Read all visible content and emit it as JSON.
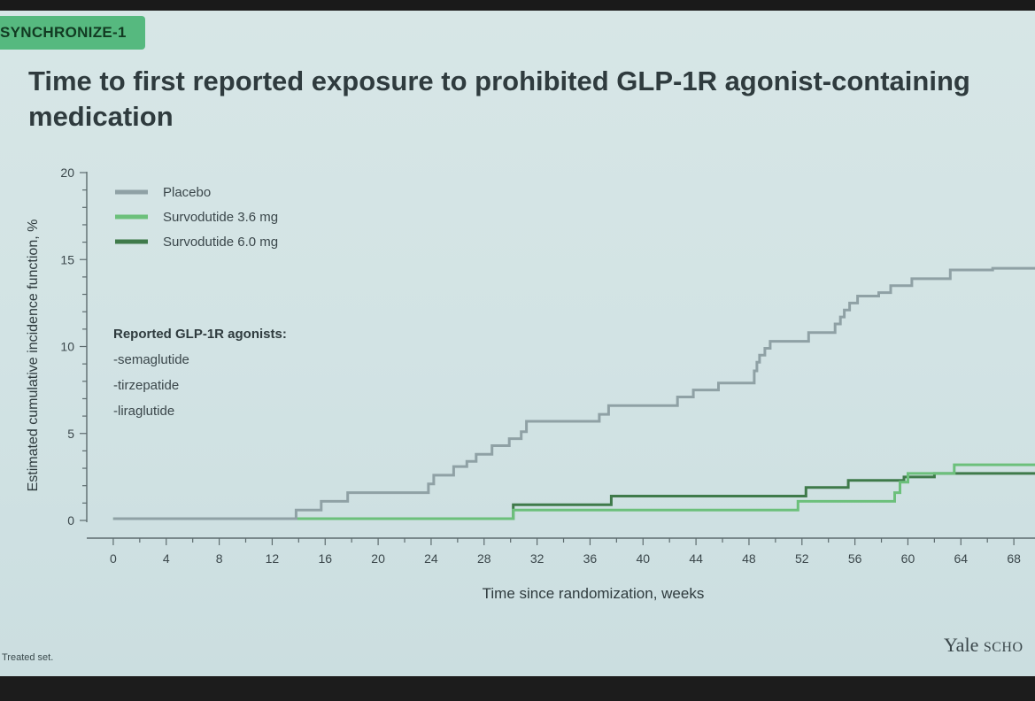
{
  "badge": "SYNCHRONIZE-1",
  "title": "Time to first reported exposure to prohibited GLP-1R agonist-containing medication",
  "footnote": "Treated set.",
  "brand": {
    "main": "Yale",
    "sub": "SCHO"
  },
  "annotation": {
    "heading": "Reported GLP-1R agonists:",
    "items": [
      "-semaglutide",
      "-tirzepatide",
      "-liraglutide"
    ]
  },
  "chart_data": {
    "type": "line",
    "title": "Time to first reported exposure to prohibited GLP-1R agonist-containing medication",
    "xlabel": "Time since randomization, weeks",
    "ylabel": "Estimated cumulative incidence function, %",
    "xlim": [
      -2,
      71
    ],
    "ylim": [
      0,
      20
    ],
    "xticks": [
      0,
      4,
      8,
      12,
      16,
      20,
      24,
      28,
      32,
      36,
      40,
      44,
      48,
      52,
      56,
      60,
      64,
      68
    ],
    "yticks": [
      0,
      5,
      10,
      15,
      20
    ],
    "grid": false,
    "legend_position": "top-left",
    "step": true,
    "series": [
      {
        "name": "Placebo",
        "color": "#8fa1a5",
        "x": [
          0,
          13.8,
          13.8,
          15.7,
          15.7,
          17.7,
          17.7,
          23.8,
          23.8,
          24.2,
          24.2,
          25.7,
          25.7,
          26.7,
          26.7,
          27.4,
          27.4,
          28.6,
          28.6,
          29.9,
          29.9,
          30.8,
          30.8,
          31.2,
          31.2,
          36.7,
          36.7,
          37.4,
          37.4,
          42.6,
          42.6,
          43.8,
          43.8,
          45.7,
          45.7,
          48.4,
          48.4,
          48.6,
          48.6,
          48.8,
          48.8,
          49.2,
          49.2,
          49.6,
          49.6,
          52.5,
          52.5,
          54.5,
          54.5,
          54.9,
          54.9,
          55.2,
          55.2,
          55.6,
          55.6,
          56.2,
          56.2,
          57.8,
          57.8,
          58.7,
          58.7,
          60.3,
          60.3,
          63.2,
          63.2,
          66.4,
          66.4,
          71
        ],
        "y": [
          0.1,
          0.1,
          0.6,
          0.6,
          1.1,
          1.1,
          1.6,
          1.6,
          2.1,
          2.1,
          2.6,
          2.6,
          3.1,
          3.1,
          3.4,
          3.4,
          3.8,
          3.8,
          4.3,
          4.3,
          4.7,
          4.7,
          5.1,
          5.1,
          5.7,
          5.7,
          6.1,
          6.1,
          6.6,
          6.6,
          7.1,
          7.1,
          7.5,
          7.5,
          7.9,
          7.9,
          8.6,
          8.6,
          9.1,
          9.1,
          9.5,
          9.5,
          9.9,
          9.9,
          10.3,
          10.3,
          10.8,
          10.8,
          11.3,
          11.3,
          11.7,
          11.7,
          12.1,
          12.1,
          12.5,
          12.5,
          12.9,
          12.9,
          13.1,
          13.1,
          13.5,
          13.5,
          13.9,
          13.9,
          14.4,
          14.4,
          14.5,
          14.5
        ]
      },
      {
        "name": "Survodutide 3.6 mg",
        "color": "#6cc07b",
        "x": [
          0,
          30.2,
          30.2,
          51.7,
          51.7,
          59.0,
          59.0,
          59.4,
          59.4,
          60.0,
          60.0,
          63.5,
          63.5,
          71
        ],
        "y": [
          0.1,
          0.1,
          0.6,
          0.6,
          1.1,
          1.1,
          1.6,
          1.6,
          2.2,
          2.2,
          2.7,
          2.7,
          3.2,
          3.2
        ]
      },
      {
        "name": "Survodutide 6.0 mg",
        "color": "#3f7a4a",
        "x": [
          0,
          30.2,
          30.2,
          37.6,
          37.6,
          52.3,
          52.3,
          55.5,
          55.5,
          59.7,
          59.7,
          62.0,
          62.0,
          71
        ],
        "y": [
          0.1,
          0.1,
          0.9,
          0.9,
          1.4,
          1.4,
          1.9,
          1.9,
          2.3,
          2.3,
          2.5,
          2.5,
          2.7,
          2.7
        ]
      }
    ]
  }
}
